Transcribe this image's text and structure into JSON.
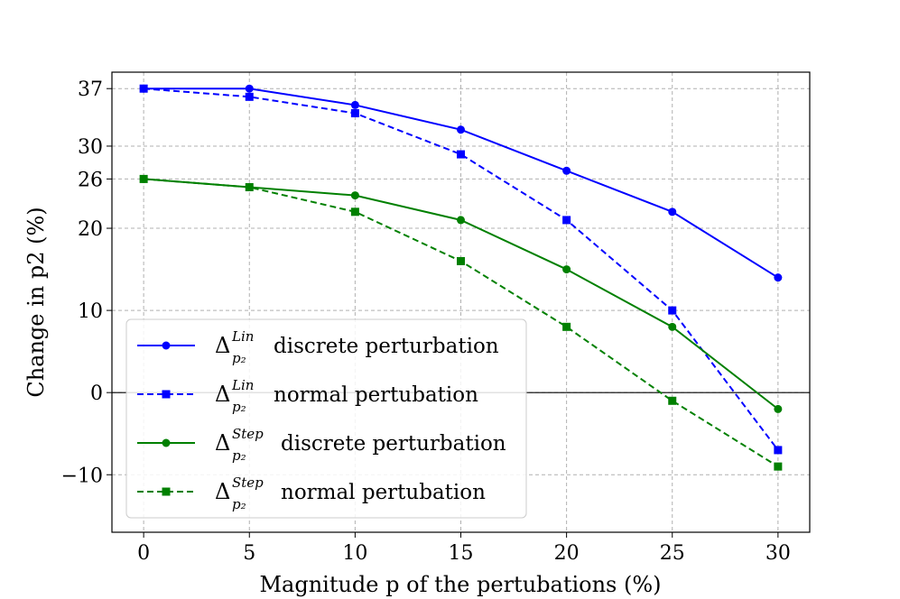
{
  "chart_data": {
    "type": "line",
    "title": "",
    "xlabel": "Magnitude p of the pertubations (%)",
    "ylabel": "Change in p2 (%)",
    "x": [
      0,
      5,
      10,
      15,
      20,
      25,
      30
    ],
    "xticks": [
      "0",
      "5",
      "10",
      "15",
      "20",
      "25",
      "30"
    ],
    "xlim": [
      -1.5,
      31.5
    ],
    "ylim": [
      -17,
      39
    ],
    "yticks": [
      {
        "value": 37,
        "label": "37"
      },
      {
        "value": 30,
        "label": "30"
      },
      {
        "value": 26,
        "label": "26"
      },
      {
        "value": 20,
        "label": "20"
      },
      {
        "value": 10,
        "label": "10"
      },
      {
        "value": 0,
        "label": "0"
      },
      {
        "value": -10,
        "label": "−10"
      }
    ],
    "grid": true,
    "zero_line": true,
    "legend_position": "lower-left",
    "series": [
      {
        "key": "lin-discrete",
        "symbol": "Δ",
        "sup": "Lin",
        "sub": "p₂",
        "text": "discrete perturbation",
        "color": "#0000ff",
        "marker": "circle",
        "dashed": false,
        "values": [
          37,
          37,
          35,
          32,
          27,
          22,
          14
        ]
      },
      {
        "key": "lin-normal",
        "symbol": "Δ",
        "sup": "Lin",
        "sub": "p₂",
        "text": "normal pertubation",
        "color": "#0000ff",
        "marker": "square",
        "dashed": true,
        "values": [
          37,
          36,
          34,
          29,
          21,
          10,
          -7
        ]
      },
      {
        "key": "step-discrete",
        "symbol": "Δ",
        "sup": "Step",
        "sub": "p₂",
        "text": "discrete perturbation",
        "color": "#008000",
        "marker": "circle",
        "dashed": false,
        "values": [
          26,
          25,
          24,
          21,
          15,
          8,
          -2
        ]
      },
      {
        "key": "step-normal",
        "symbol": "Δ",
        "sup": "Step",
        "sub": "p₂",
        "text": "normal pertubation",
        "color": "#008000",
        "marker": "square",
        "dashed": true,
        "values": [
          26,
          25,
          22,
          16,
          8,
          -1,
          -9
        ]
      }
    ]
  }
}
